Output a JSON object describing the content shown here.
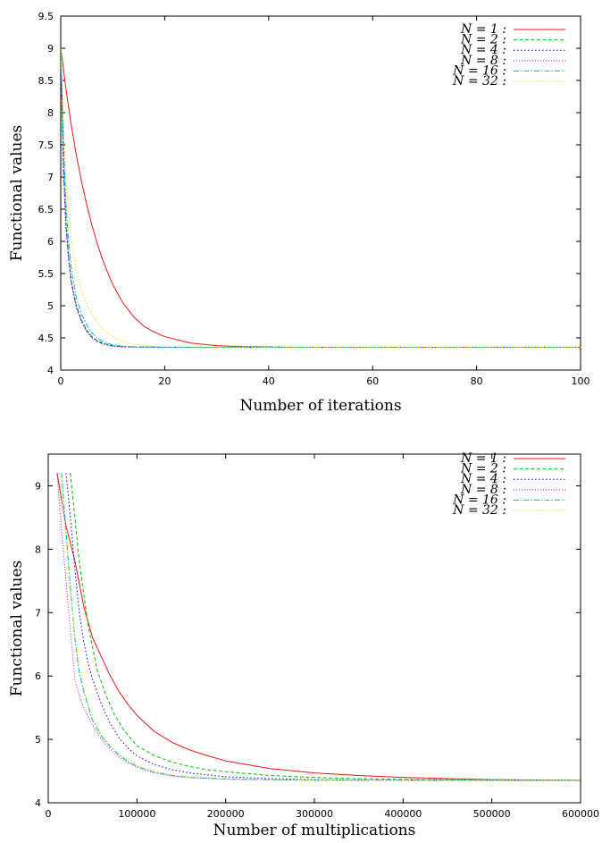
{
  "chart_data": [
    {
      "type": "line",
      "title": "",
      "xlabel": "Number of iterations",
      "ylabel": "Functional values",
      "xlim": [
        0,
        100
      ],
      "ylim": [
        4,
        9.5
      ],
      "xticks": [
        "0",
        "20",
        "40",
        "60",
        "80",
        "100"
      ],
      "yticks": [
        "4",
        "4.5",
        "5",
        "5.5",
        "6",
        "6.5",
        "7",
        "7.5",
        "8",
        "8.5",
        "9",
        "9.5"
      ],
      "grid": false,
      "legend_position": "top-right",
      "series": [
        {
          "name": "N = 1 :",
          "color": "#e41a1c",
          "x": [
            0,
            1,
            2,
            3,
            4,
            5,
            6,
            7,
            8,
            9,
            10,
            12,
            14,
            16,
            18,
            20,
            25,
            30,
            35,
            40,
            45,
            50,
            60,
            70,
            80,
            90,
            100
          ],
          "y": [
            9.0,
            8.37,
            7.82,
            7.34,
            6.93,
            6.57,
            6.25,
            5.97,
            5.73,
            5.52,
            5.33,
            5.04,
            4.83,
            4.68,
            4.59,
            4.52,
            4.42,
            4.38,
            4.365,
            4.36,
            4.355,
            4.355,
            4.355,
            4.355,
            4.355,
            4.355,
            4.355
          ]
        },
        {
          "name": "N = 2 :",
          "color": "#00c000",
          "x": [
            0,
            0.5,
            1,
            1.5,
            2,
            3,
            4,
            5,
            6,
            7,
            8,
            10,
            12,
            15,
            20,
            30,
            40,
            60,
            80,
            100
          ],
          "y": [
            9.0,
            7.3,
            6.3,
            5.8,
            5.4,
            5.0,
            4.78,
            4.62,
            4.52,
            4.46,
            4.42,
            4.38,
            4.365,
            4.36,
            4.355,
            4.355,
            4.355,
            4.355,
            4.355,
            4.355
          ]
        },
        {
          "name": "N = 4 :",
          "color": "#0000cc",
          "x": [
            0,
            0.5,
            1,
            1.5,
            2,
            3,
            4,
            5,
            6,
            7,
            8,
            10,
            12,
            15,
            20,
            30,
            40,
            60,
            80,
            100
          ],
          "y": [
            9.0,
            7.2,
            6.25,
            5.75,
            5.38,
            4.98,
            4.76,
            4.6,
            4.51,
            4.45,
            4.41,
            4.375,
            4.362,
            4.357,
            4.355,
            4.355,
            4.355,
            4.355,
            4.355,
            4.355
          ]
        },
        {
          "name": "N = 8 :",
          "color": "#e000e0",
          "x": [
            0,
            0.5,
            1,
            1.5,
            2,
            3,
            4,
            5,
            6,
            7,
            8,
            10,
            12,
            15,
            20,
            30,
            40,
            60,
            80,
            100
          ],
          "y": [
            9.0,
            7.1,
            6.2,
            5.72,
            5.36,
            4.96,
            4.75,
            4.6,
            4.5,
            4.44,
            4.4,
            4.37,
            4.36,
            4.356,
            4.355,
            4.355,
            4.355,
            4.355,
            4.355,
            4.355
          ]
        },
        {
          "name": "N = 16 :",
          "color": "#00bbdd",
          "x": [
            0,
            0.5,
            1,
            1.5,
            2,
            3,
            4,
            5,
            6,
            7,
            8,
            10,
            12,
            15,
            20,
            30,
            40,
            60,
            80,
            100
          ],
          "y": [
            9.0,
            7.6,
            6.6,
            6.0,
            5.6,
            5.12,
            4.87,
            4.7,
            4.58,
            4.5,
            4.45,
            4.39,
            4.37,
            4.36,
            4.355,
            4.355,
            4.355,
            4.355,
            4.355,
            4.355
          ]
        },
        {
          "name": "N = 32 :",
          "color": "#e8e800",
          "x": [
            0,
            0.5,
            1,
            1.5,
            2,
            3,
            4,
            5,
            6,
            7,
            8,
            10,
            12,
            14,
            16,
            20,
            30,
            40,
            60,
            80,
            100
          ],
          "y": [
            9.0,
            7.9,
            7.0,
            6.45,
            6.05,
            5.55,
            5.24,
            5.02,
            4.86,
            4.74,
            4.64,
            4.52,
            4.44,
            4.4,
            4.38,
            4.362,
            4.355,
            4.355,
            4.355,
            4.355,
            4.355
          ]
        }
      ]
    },
    {
      "type": "line",
      "title": "",
      "xlabel": "Number of multiplications",
      "ylabel": "Functional values",
      "xlim": [
        0,
        600000
      ],
      "ylim": [
        4,
        9.5
      ],
      "xticks": [
        "0",
        "100000",
        "200000",
        "300000",
        "400000",
        "500000",
        "600000"
      ],
      "yticks": [
        "4",
        "5",
        "6",
        "7",
        "8",
        "9"
      ],
      "grid": false,
      "legend_position": "top-right",
      "series": [
        {
          "name": "N = 1 :",
          "color": "#e41a1c",
          "x": [
            10000,
            20000,
            30000,
            40000,
            50000,
            60000,
            70000,
            80000,
            90000,
            100000,
            120000,
            140000,
            160000,
            180000,
            200000,
            250000,
            300000,
            350000,
            400000,
            450000,
            500000,
            550000,
            600000
          ],
          "y": [
            9.2,
            8.37,
            7.82,
            7.1,
            6.6,
            6.3,
            6.0,
            5.75,
            5.55,
            5.38,
            5.12,
            4.95,
            4.83,
            4.74,
            4.66,
            4.54,
            4.47,
            4.43,
            4.4,
            4.38,
            4.365,
            4.36,
            4.355
          ]
        },
        {
          "name": "N = 2 :",
          "color": "#00c000",
          "x": [
            25000,
            35000,
            45000,
            55000,
            65000,
            75000,
            85000,
            100000,
            120000,
            140000,
            160000,
            180000,
            200000,
            250000,
            300000,
            350000,
            400000,
            450000,
            500000,
            550000,
            600000
          ],
          "y": [
            9.2,
            7.8,
            6.8,
            6.1,
            5.7,
            5.38,
            5.15,
            4.9,
            4.74,
            4.64,
            4.57,
            4.52,
            4.49,
            4.43,
            4.4,
            4.38,
            4.37,
            4.365,
            4.36,
            4.357,
            4.355
          ]
        },
        {
          "name": "N = 4 :",
          "color": "#0000cc",
          "x": [
            20000,
            25000,
            30000,
            35000,
            40000,
            45000,
            50000,
            60000,
            70000,
            80000,
            90000,
            100000,
            120000,
            140000,
            160000,
            200000,
            250000,
            300000,
            400000,
            500000,
            600000
          ],
          "y": [
            9.2,
            8.5,
            7.7,
            7.0,
            6.55,
            6.2,
            5.95,
            5.55,
            5.25,
            5.02,
            4.86,
            4.74,
            4.6,
            4.52,
            4.47,
            4.41,
            4.38,
            4.365,
            4.357,
            4.355,
            4.355
          ]
        },
        {
          "name": "N = 8 :",
          "color": "#e000e0",
          "x": [
            10000,
            15000,
            20000,
            25000,
            30000,
            35000,
            40000,
            50000,
            60000,
            70000,
            80000,
            90000,
            100000,
            120000,
            140000,
            160000,
            200000,
            250000,
            300000,
            400000,
            500000,
            600000
          ],
          "y": [
            9.2,
            8.3,
            7.5,
            6.7,
            5.95,
            5.7,
            5.5,
            5.22,
            5.0,
            4.84,
            4.72,
            4.63,
            4.56,
            4.47,
            4.42,
            4.395,
            4.37,
            4.36,
            4.357,
            4.355,
            4.355,
            4.355
          ]
        },
        {
          "name": "N = 16 :",
          "color": "#00bbdd",
          "x": [
            15000,
            20000,
            25000,
            30000,
            35000,
            40000,
            50000,
            60000,
            70000,
            80000,
            90000,
            100000,
            120000,
            140000,
            160000,
            200000,
            250000,
            300000,
            400000,
            500000,
            600000
          ],
          "y": [
            9.2,
            8.3,
            7.4,
            6.6,
            6.05,
            5.75,
            5.3,
            5.05,
            4.88,
            4.75,
            4.65,
            4.57,
            4.48,
            4.43,
            4.4,
            4.375,
            4.362,
            4.357,
            4.355,
            4.355,
            4.355
          ]
        },
        {
          "name": "N = 32 :",
          "color": "#e8e800",
          "x": [
            12000,
            17000,
            22000,
            27000,
            32000,
            37000,
            42000,
            50000,
            60000,
            70000,
            80000,
            90000,
            100000,
            120000,
            140000,
            160000,
            200000,
            250000,
            300000,
            400000,
            500000,
            600000
          ],
          "y": [
            9.2,
            8.6,
            7.8,
            7.0,
            6.45,
            6.0,
            5.7,
            5.35,
            5.08,
            4.9,
            4.77,
            4.67,
            4.59,
            4.49,
            4.44,
            4.41,
            4.38,
            4.365,
            4.358,
            4.355,
            4.355,
            4.355
          ]
        }
      ]
    }
  ]
}
